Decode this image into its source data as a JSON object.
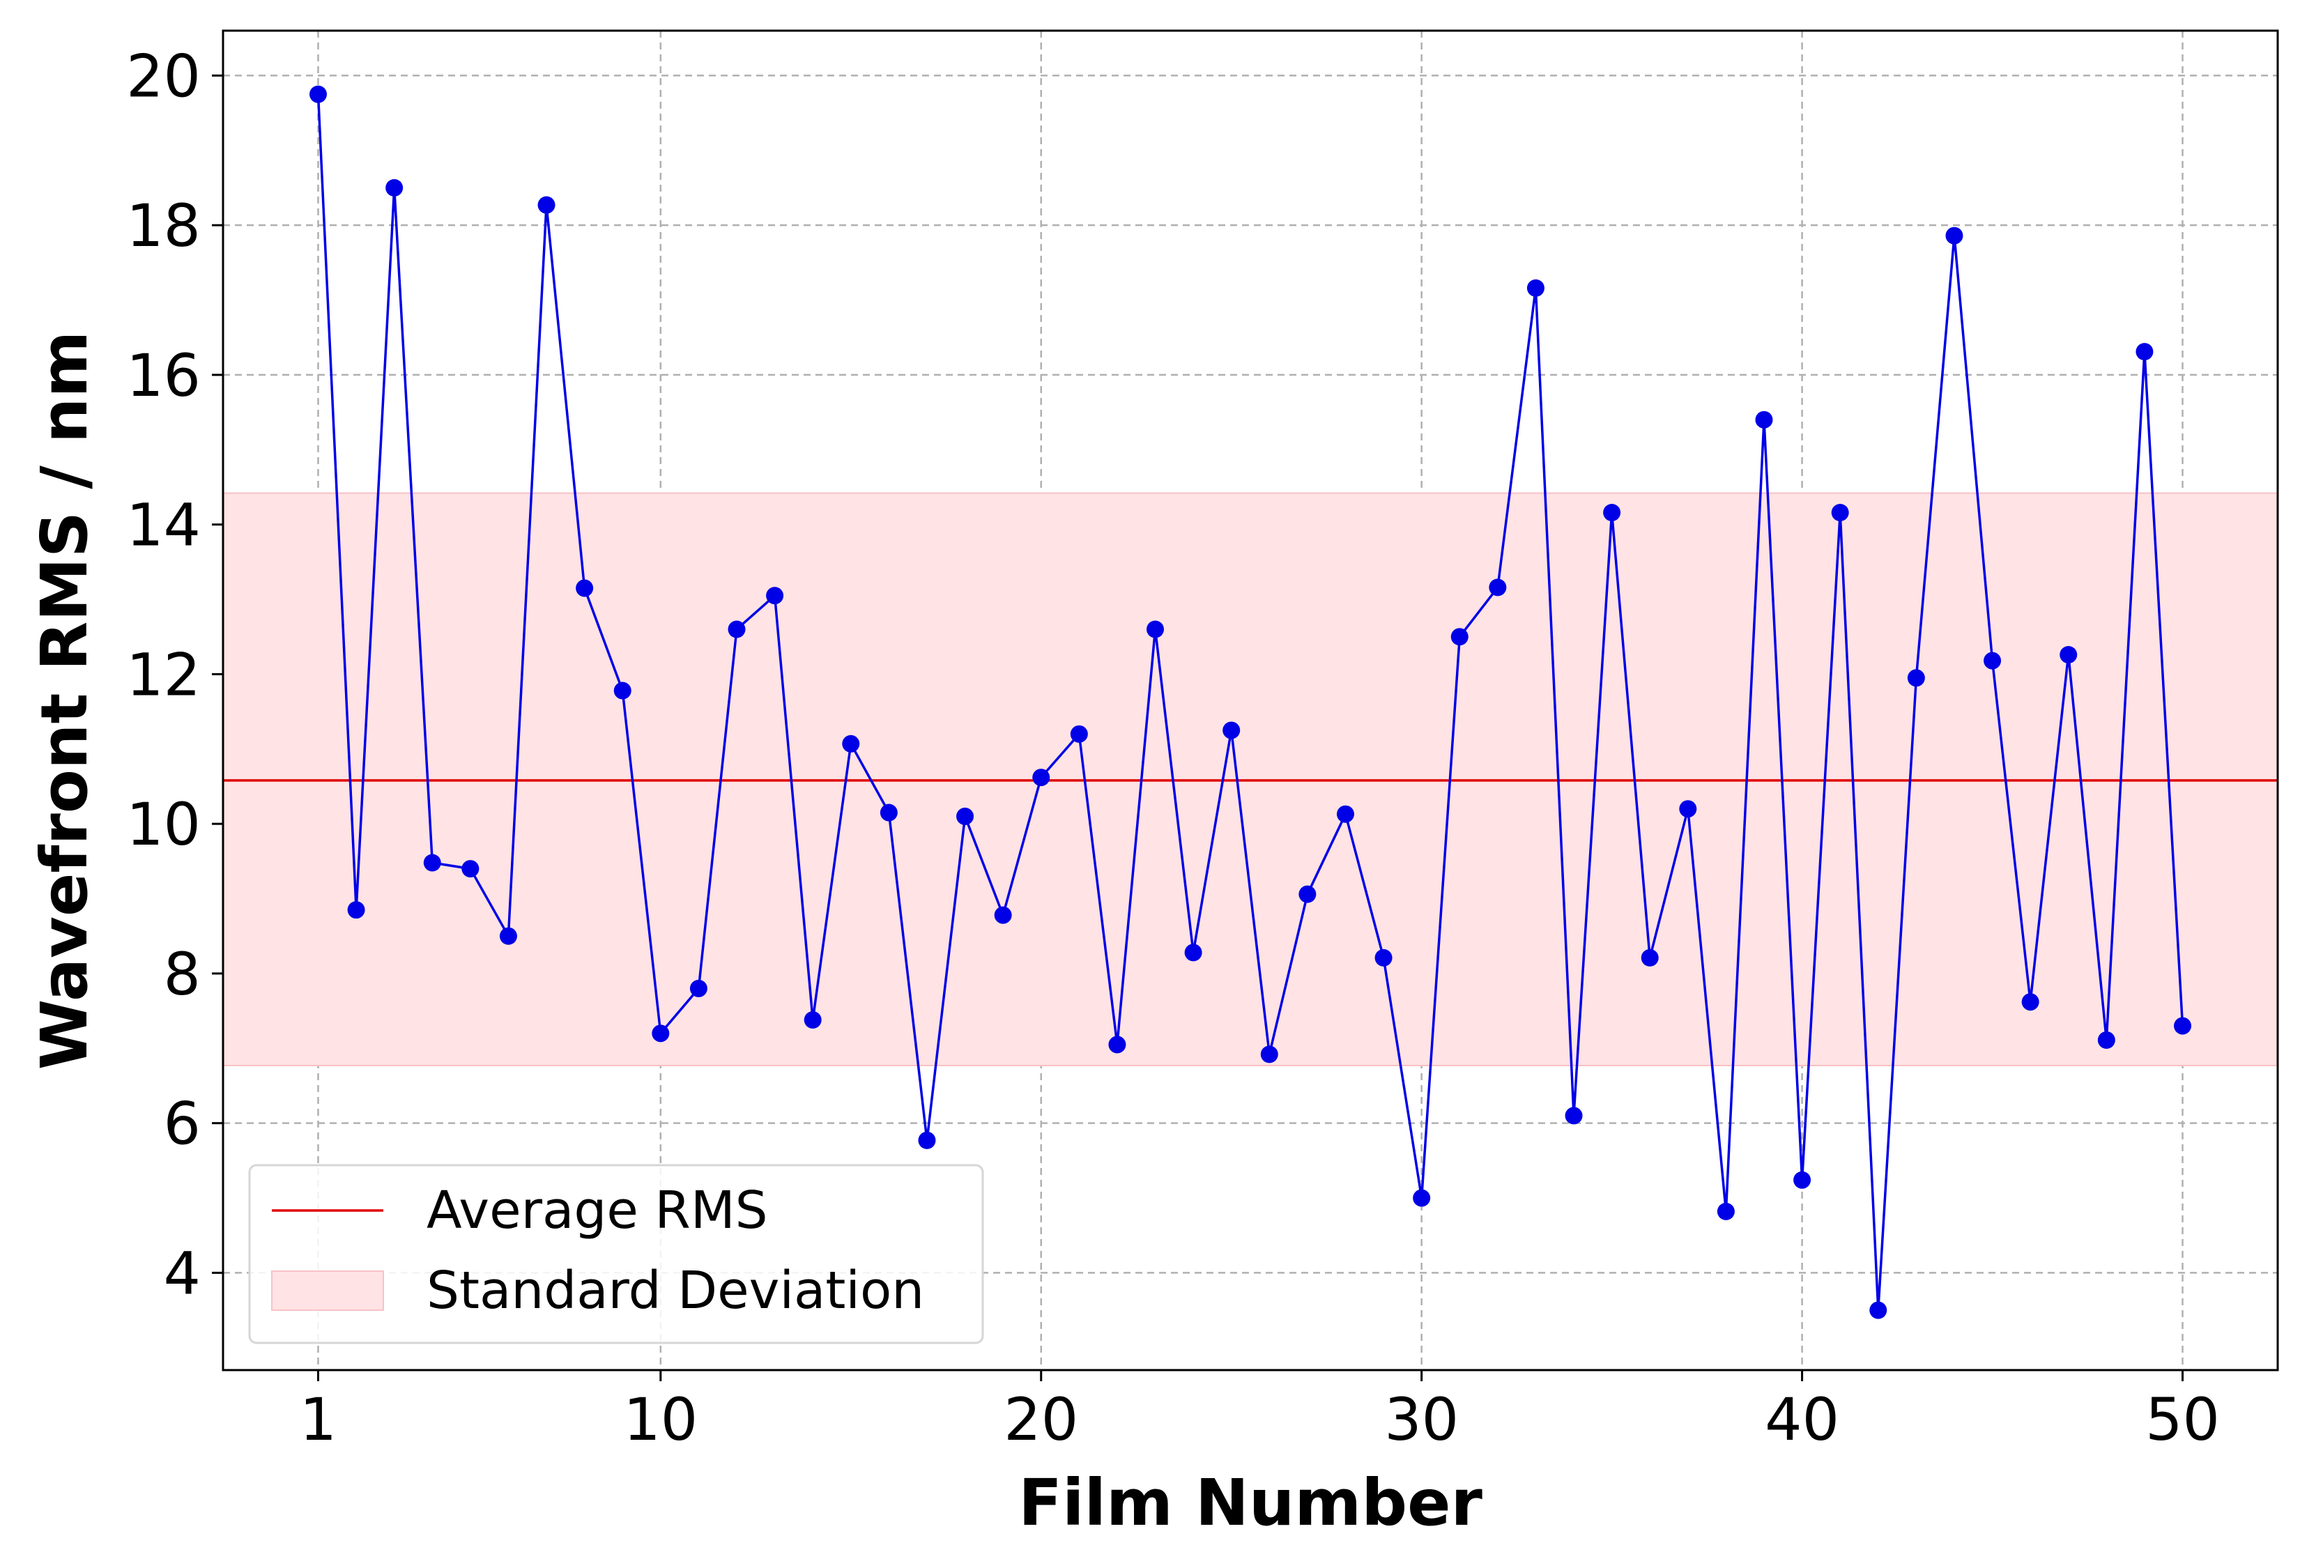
{
  "chart_data": {
    "type": "line",
    "xlabel": "Film Number",
    "ylabel": "Wavefront RMS / nm",
    "xlim": [
      -1.5,
      52.5
    ],
    "ylim": [
      2.7,
      20.6
    ],
    "x_ticks": [
      1,
      10,
      20,
      30,
      40,
      50
    ],
    "y_ticks": [
      4,
      6,
      8,
      10,
      12,
      14,
      16,
      18,
      20
    ],
    "grid": true,
    "legend_position": "lower-left",
    "colors": {
      "series": "#0000e6",
      "average": "#e00000",
      "band_fill": "#ffe3e5",
      "band_edge": "#f7c2c6"
    },
    "series": [
      {
        "name": "Wavefront RMS",
        "x": [
          1,
          2,
          3,
          4,
          5,
          6,
          7,
          8,
          9,
          10,
          11,
          12,
          13,
          14,
          15,
          16,
          17,
          18,
          19,
          20,
          21,
          22,
          23,
          24,
          25,
          26,
          27,
          28,
          29,
          30,
          31,
          32,
          33,
          34,
          35,
          36,
          37,
          38,
          39,
          40,
          41,
          42,
          43,
          44,
          45,
          46,
          47,
          48,
          49,
          50
        ],
        "values": [
          19.75,
          8.85,
          18.5,
          9.48,
          9.4,
          8.5,
          18.27,
          13.15,
          11.78,
          7.2,
          7.8,
          12.6,
          13.05,
          7.38,
          11.07,
          10.15,
          5.77,
          10.1,
          8.78,
          10.62,
          11.2,
          7.05,
          12.6,
          8.28,
          11.25,
          6.92,
          9.06,
          10.13,
          8.21,
          5.0,
          12.5,
          13.16,
          17.16,
          6.1,
          14.16,
          8.21,
          10.2,
          4.82,
          15.4,
          5.24,
          14.16,
          3.5,
          11.95,
          17.86,
          12.18,
          7.62,
          12.26,
          7.11,
          16.31,
          7.3
        ]
      }
    ],
    "average": {
      "label": "Average RMS",
      "value": 10.58
    },
    "std_band": {
      "label": "Standard Deviation",
      "low": 6.77,
      "high": 14.42
    }
  }
}
